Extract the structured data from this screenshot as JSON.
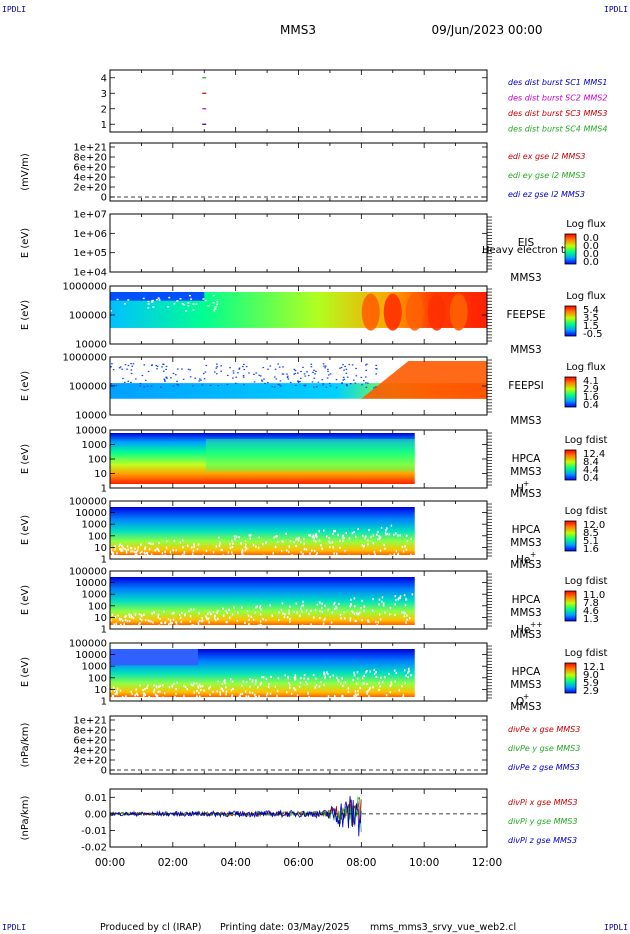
{
  "header": {
    "corner_label": "IPDLI",
    "spacecraft": "MMS3",
    "datetime": "09/Jun/2023 00:00"
  },
  "footer": {
    "produced_by": "Produced by cl (IRAP)",
    "printing_date": "Printing date: 03/May/2025",
    "script_name": "mms_mms3_srvy_vue_web2.cl"
  },
  "x_ticks": [
    "00:00",
    "02:00",
    "04:00",
    "06:00",
    "08:00",
    "10:00",
    "12:00"
  ],
  "chart_data": [
    {
      "type": "scatter",
      "id": "burst",
      "ylim": [
        0.5,
        4.5
      ],
      "yticks": [
        "1",
        "2",
        "3",
        "4"
      ],
      "points": [
        {
          "t_hours": 3.0,
          "y": 4,
          "color": "#22aa22"
        },
        {
          "t_hours": 3.0,
          "y": 3,
          "color": "#cc0000"
        },
        {
          "t_hours": 3.0,
          "y": 2,
          "color": "#cc00cc"
        },
        {
          "t_hours": 3.0,
          "y": 1,
          "color": "#0000cc"
        }
      ],
      "legend": [
        {
          "text": "des dist burst SC1 MMS1",
          "color": "#0000cc"
        },
        {
          "text": "des dist burst SC2 MMS2",
          "color": "#cc00cc"
        },
        {
          "text": "des dist burst SC3 MMS3",
          "color": "#cc0000"
        },
        {
          "text": "des dist burst SC4 MMS4",
          "color": "#22aa22"
        }
      ]
    },
    {
      "type": "line",
      "id": "edi",
      "ylabel": "(mV/m)",
      "yticks": [
        "0",
        "2e+20",
        "4e+20",
        "6e+20",
        "8e+20",
        "1e+21"
      ],
      "zero_line": true,
      "legend": [
        {
          "text": "edi ex gse l2 MMS3",
          "color": "#cc0000"
        },
        {
          "text": "edi ey gse l2 MMS3",
          "color": "#22aa22"
        },
        {
          "text": "edi ez gse l2 MMS3",
          "color": "#0000cc"
        }
      ]
    },
    {
      "type": "heatmap",
      "id": "eis",
      "ylabel": "E (eV)",
      "yticks": [
        "1e+04",
        "1e+05",
        "1e+06",
        "1e+07"
      ],
      "instrument": "EIS",
      "species": "Heavy electron to",
      "spacecraft": "MMS3",
      "colorbar_title": "Log flux",
      "colorbar_ticks": [
        "0.0",
        "0.0",
        "0.0",
        "0.0"
      ]
    },
    {
      "type": "heatmap",
      "id": "feepse",
      "ylabel": "E (eV)",
      "yticks": [
        "10000",
        "100000",
        "1000000"
      ],
      "instrument": "FEEPSE",
      "spacecraft": "MMS3",
      "colorbar_title": "Log flux",
      "colorbar_ticks": [
        "5.4",
        "3.5",
        "1.5",
        "-0.5"
      ],
      "data_end_hours": 12.0
    },
    {
      "type": "heatmap",
      "id": "feepsi",
      "ylabel": "E (eV)",
      "yticks": [
        "10000",
        "100000",
        "1000000"
      ],
      "instrument": "FEEPSI",
      "spacecraft": "MMS3",
      "colorbar_title": "Log flux",
      "colorbar_ticks": [
        "4.1",
        "2.9",
        "1.6",
        "0.4"
      ],
      "data_end_hours": 12.0
    },
    {
      "type": "heatmap",
      "id": "hpca_h",
      "ylabel": "E (eV)",
      "yticks": [
        "1",
        "10",
        "100",
        "1000",
        "10000"
      ],
      "instrument": "HPCA",
      "spacecraft": "MMS3",
      "ion": "H",
      "ion_sup": "+",
      "colorbar_title": "Log fdist",
      "colorbar_ticks": [
        "12.4",
        "8.4",
        "4.4",
        "0.4"
      ],
      "data_end_hours": 9.7
    },
    {
      "type": "heatmap",
      "id": "hpca_he",
      "ylabel": "E (eV)",
      "yticks": [
        "1",
        "10",
        "100",
        "1000",
        "10000",
        "100000"
      ],
      "instrument": "HPCA",
      "spacecraft": "MMS3",
      "ion": "He",
      "ion_sup": "+",
      "colorbar_title": "Log fdist",
      "colorbar_ticks": [
        "12.0",
        "8.5",
        "5.1",
        "1.6"
      ],
      "data_end_hours": 9.7
    },
    {
      "type": "heatmap",
      "id": "hpca_hepp",
      "ylabel": "E (eV)",
      "yticks": [
        "1",
        "10",
        "100",
        "1000",
        "10000",
        "100000"
      ],
      "instrument": "HPCA",
      "spacecraft": "MMS3",
      "ion": "He",
      "ion_sup": "++",
      "colorbar_title": "Log fdist",
      "colorbar_ticks": [
        "11.0",
        "7.8",
        "4.6",
        "1.3"
      ],
      "data_end_hours": 9.7
    },
    {
      "type": "heatmap",
      "id": "hpca_o",
      "ylabel": "E (eV)",
      "yticks": [
        "1",
        "10",
        "100",
        "1000",
        "10000",
        "100000"
      ],
      "instrument": "HPCA",
      "spacecraft": "MMS3",
      "ion": "O",
      "ion_sup": "+",
      "colorbar_title": "Log fdist",
      "colorbar_ticks": [
        "12.1",
        "9.0",
        "5.9",
        "2.9"
      ],
      "data_end_hours": 9.7
    },
    {
      "type": "line",
      "id": "divpe",
      "ylabel": "(nPa/km)",
      "yticks": [
        "0",
        "2e+20",
        "4e+20",
        "6e+20",
        "8e+20",
        "1e+21"
      ],
      "zero_line": true,
      "legend": [
        {
          "text": "divPe x gse MMS3",
          "color": "#cc0000"
        },
        {
          "text": "divPe y gse MMS3",
          "color": "#22aa22"
        },
        {
          "text": "divPe z gse MMS3",
          "color": "#0000cc"
        }
      ]
    },
    {
      "type": "line",
      "id": "divpi",
      "ylabel": "(nPa/km)",
      "ylim": [
        -0.02,
        0.015
      ],
      "yticks": [
        "-0.02",
        "-0.01",
        "0.00",
        "0.01"
      ],
      "zero_line": true,
      "data_end_hours": 8.0,
      "legend": [
        {
          "text": "divPi x gse MMS3",
          "color": "#cc0000"
        },
        {
          "text": "divPi y gse MMS3",
          "color": "#22aa22"
        },
        {
          "text": "divPi z gse MMS3",
          "color": "#0000cc"
        }
      ]
    }
  ]
}
